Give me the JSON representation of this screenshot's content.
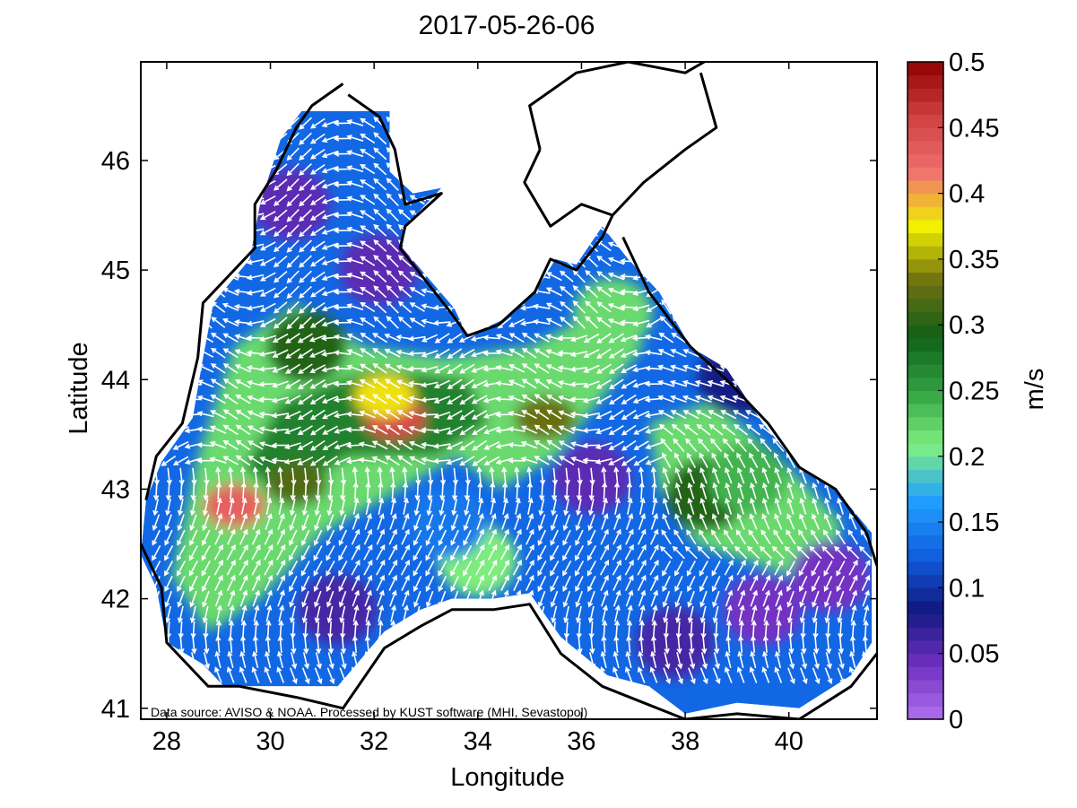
{
  "chart_data": {
    "type": "heatmap",
    "title": "2017-05-26-06",
    "xlabel": "Longitude",
    "ylabel": "Latitude",
    "xlim": [
      27.5,
      41.7
    ],
    "ylim": [
      40.9,
      46.9
    ],
    "xticks": [
      "28",
      "30",
      "32",
      "34",
      "36",
      "38",
      "40"
    ],
    "xtick_values": [
      28,
      30,
      32,
      34,
      36,
      38,
      40
    ],
    "yticks": [
      "41",
      "42",
      "43",
      "44",
      "45",
      "46"
    ],
    "ytick_values": [
      41,
      42,
      43,
      44,
      45,
      46
    ],
    "colorbar": {
      "label": "m/s",
      "range": [
        0,
        0.5
      ],
      "ticks": [
        "0",
        "0.05",
        "0.1",
        "0.15",
        "0.2",
        "0.25",
        "0.3",
        "0.35",
        "0.4",
        "0.45",
        "0.5"
      ],
      "tick_values": [
        0,
        0.05,
        0.1,
        0.15,
        0.2,
        0.25,
        0.3,
        0.35,
        0.4,
        0.45,
        0.5
      ],
      "colors": [
        "#b070f0",
        "#7030c0",
        "#101880",
        "#1060e0",
        "#20a0ff",
        "#80f080",
        "#30a040",
        "#106018",
        "#707010",
        "#f0f000",
        "#f07070",
        "#d04040",
        "#900000"
      ]
    },
    "speed_features": [
      {
        "lon": 32.4,
        "lat": 43.65,
        "speed": 0.45
      },
      {
        "lon": 29.3,
        "lat": 42.85,
        "speed": 0.43
      },
      {
        "lon": 32.2,
        "lat": 43.85,
        "speed": 0.38
      },
      {
        "lon": 35.3,
        "lat": 43.65,
        "speed": 0.33
      },
      {
        "lon": 30.5,
        "lat": 43.05,
        "speed": 0.32
      },
      {
        "lon": 38.4,
        "lat": 42.95,
        "speed": 0.3
      },
      {
        "lon": 30.7,
        "lat": 44.3,
        "speed": 0.3
      },
      {
        "lon": 36.6,
        "lat": 44.6,
        "speed": 0.22
      },
      {
        "lon": 34.0,
        "lat": 42.35,
        "speed": 0.21
      },
      {
        "lon": 39.2,
        "lat": 43.1,
        "speed": 0.24
      },
      {
        "lon": 30.4,
        "lat": 45.6,
        "speed": 0.05
      },
      {
        "lon": 32.1,
        "lat": 45.0,
        "speed": 0.05
      },
      {
        "lon": 36.2,
        "lat": 43.1,
        "speed": 0.05
      },
      {
        "lon": 39.5,
        "lat": 41.9,
        "speed": 0.04
      },
      {
        "lon": 40.8,
        "lat": 42.2,
        "speed": 0.04
      },
      {
        "lon": 31.3,
        "lat": 41.9,
        "speed": 0.06
      },
      {
        "lon": 37.8,
        "lat": 41.6,
        "speed": 0.06
      },
      {
        "lon": 33.4,
        "lat": 42.7,
        "speed": 0.14
      },
      {
        "lon": 39.0,
        "lat": 44.0,
        "speed": 0.08
      }
    ],
    "grid": false
  },
  "footer": {
    "source_text": "Data source: AVISO & NOAA. Processed by KUST software (MHI, Sevastopol)"
  }
}
